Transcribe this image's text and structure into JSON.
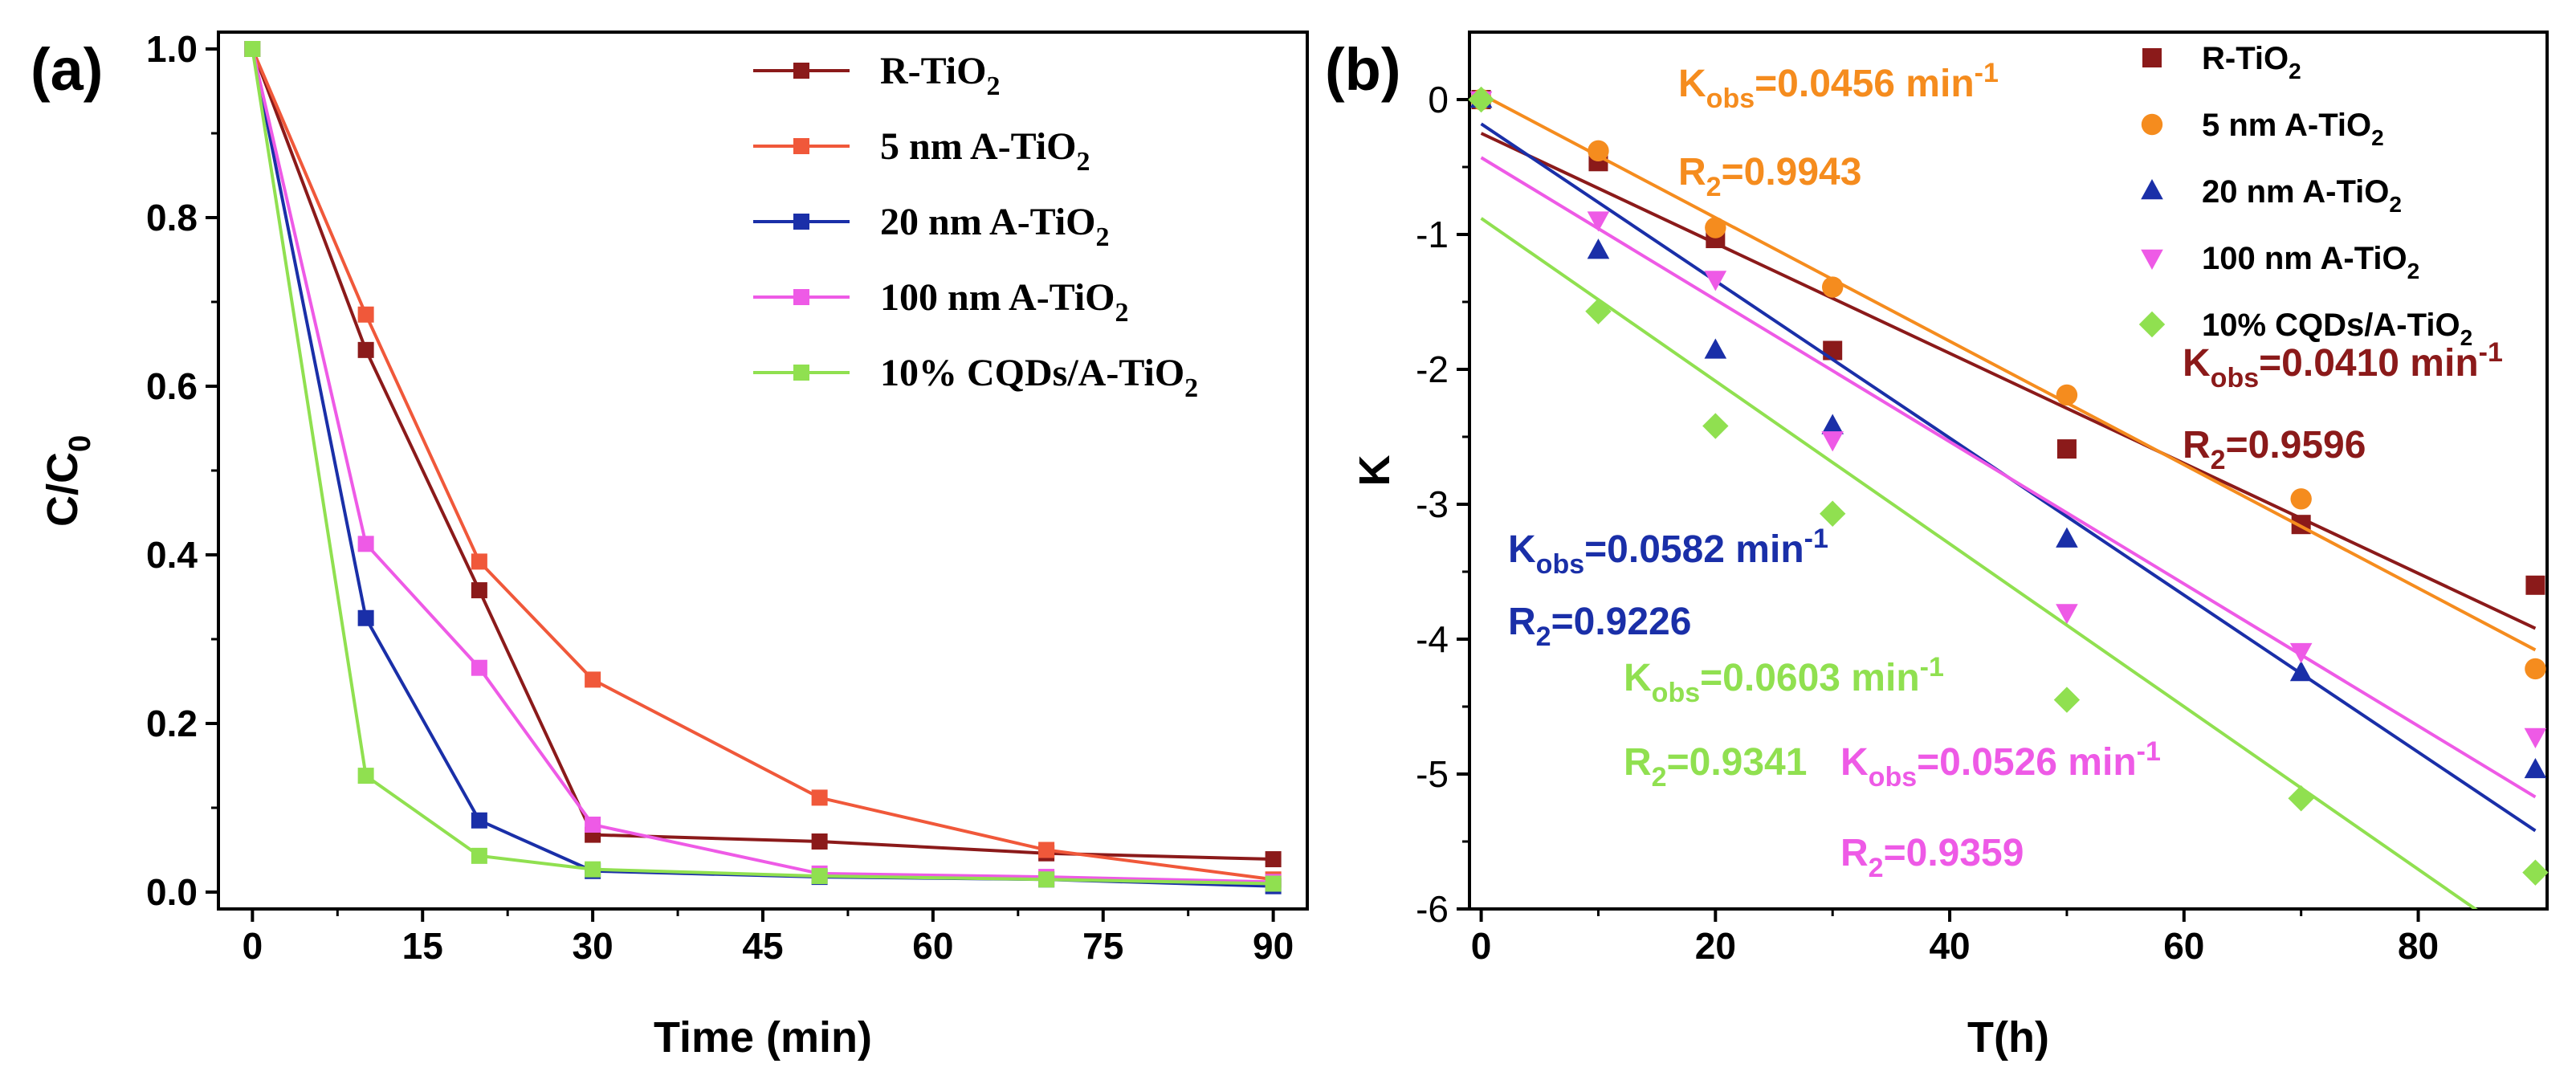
{
  "chart_data": [
    {
      "type": "line",
      "panel_label": "(a)",
      "xlabel": "Time (min)",
      "ylabel_main": "C/C",
      "ylabel_sub": "0",
      "xlim": [
        -3,
        93
      ],
      "ylim": [
        -0.02,
        1.02
      ],
      "xticks": [
        0,
        15,
        30,
        45,
        60,
        75,
        90
      ],
      "yticks": [
        0.0,
        0.2,
        0.4,
        0.6,
        0.8,
        1.0
      ],
      "x": [
        0,
        10,
        20,
        30,
        50,
        70,
        90
      ],
      "series": [
        {
          "name": "R-TiO2",
          "label_parts": [
            "R-TiO",
            "2",
            ""
          ],
          "color": "#8b1a1a",
          "values": [
            1.0,
            0.643,
            0.358,
            0.068,
            0.06,
            0.046,
            0.039
          ]
        },
        {
          "name": "5 nm A-TiO2",
          "label_parts": [
            "5 nm A-TiO",
            "2",
            ""
          ],
          "color": "#f0583a",
          "values": [
            1.0,
            0.685,
            0.392,
            0.252,
            0.112,
            0.05,
            0.015
          ]
        },
        {
          "name": "20 nm A-TiO2",
          "label_parts": [
            "20 nm A-TiO",
            "2",
            ""
          ],
          "color": "#1a2fa8",
          "values": [
            1.0,
            0.325,
            0.085,
            0.025,
            0.018,
            0.015,
            0.007
          ]
        },
        {
          "name": "100 nm A-TiO2",
          "label_parts": [
            "100 nm A-TiO",
            "2",
            ""
          ],
          "color": "#ee5ae6",
          "values": [
            1.0,
            0.413,
            0.266,
            0.08,
            0.022,
            0.018,
            0.012
          ]
        },
        {
          "name": "10% CQDs/A-TiO2",
          "label_parts": [
            "10% CQDs/A-TiO",
            "2",
            ""
          ],
          "color": "#90e050",
          "values": [
            1.0,
            0.138,
            0.043,
            0.027,
            0.019,
            0.015,
            0.01
          ]
        }
      ]
    },
    {
      "type": "scatter",
      "panel_label": "(b)",
      "xlabel": "T(h)",
      "ylabel": "K",
      "xlim": [
        -1,
        91
      ],
      "ylim": [
        -6,
        0.5
      ],
      "xticks": [
        0,
        20,
        40,
        60,
        80
      ],
      "yticks": [
        0,
        -1,
        -2,
        -3,
        -4,
        -5,
        -6
      ],
      "x": [
        0,
        10,
        20,
        30,
        50,
        70,
        90
      ],
      "series": [
        {
          "name": "R-TiO2",
          "label_parts": [
            "R-TiO",
            "2",
            ""
          ],
          "color": "#8b1a1a",
          "marker": "square",
          "values": [
            0,
            -0.46,
            -1.03,
            -1.86,
            -2.59,
            -3.15,
            -3.6
          ],
          "fit": [
            -0.25,
            -3.92
          ]
        },
        {
          "name": "5 nm A-TiO2",
          "label_parts": [
            "5 nm A-TiO",
            "2",
            ""
          ],
          "color": "#f58c1e",
          "marker": "circle",
          "values": [
            0,
            -0.38,
            -0.95,
            -1.39,
            -2.19,
            -2.96,
            -4.22
          ],
          "fit": [
            0.04,
            -4.08
          ]
        },
        {
          "name": "20 nm A-TiO2",
          "label_parts": [
            "20 nm A-TiO",
            "2",
            ""
          ],
          "color": "#1a2fa8",
          "marker": "triangle-up",
          "values": [
            0,
            -1.12,
            -1.86,
            -2.42,
            -3.26,
            -4.25,
            -4.97
          ],
          "fit": [
            -0.18,
            -5.42
          ]
        },
        {
          "name": "100 nm A-TiO2",
          "label_parts": [
            "100 nm A-TiO",
            "2",
            ""
          ],
          "color": "#ee5ae6",
          "marker": "triangle-down",
          "values": [
            0,
            -0.89,
            -1.33,
            -2.52,
            -3.8,
            -4.09,
            -4.72
          ],
          "fit": [
            -0.43,
            -5.17
          ]
        },
        {
          "name": "10% CQDs/A-TiO2",
          "label_parts": [
            "10% CQDs/A-TiO",
            "2",
            ""
          ],
          "color": "#90e050",
          "marker": "diamond",
          "values": [
            0,
            -1.57,
            -2.42,
            -3.07,
            -4.45,
            -5.18,
            -5.73
          ],
          "fit": [
            -0.88,
            -6.31
          ]
        }
      ],
      "annotations": [
        {
          "id": "k-5nm",
          "color": "#f58c1e",
          "lines": [
            [
              "K",
              "obs",
              "=0.0456 min",
              "-1"
            ],
            [
              "R",
              "2",
              "=0.9943",
              ""
            ]
          ]
        },
        {
          "id": "k-r",
          "color": "#8b1a1a",
          "lines": [
            [
              "K",
              "obs",
              "=0.0410 min",
              "-1"
            ],
            [
              "R",
              "2",
              "=0.9596",
              ""
            ]
          ]
        },
        {
          "id": "k-20nm",
          "color": "#1a2fa8",
          "lines": [
            [
              "K",
              "obs",
              "=0.0582 min",
              "-1"
            ],
            [
              "R",
              "2",
              "=0.9226",
              ""
            ]
          ]
        },
        {
          "id": "k-cqd",
          "color": "#90e050",
          "lines": [
            [
              "K",
              "obs",
              "=0.0603 min",
              "-1"
            ],
            [
              "R",
              "2",
              "=0.9341",
              ""
            ]
          ]
        },
        {
          "id": "k-100nm",
          "color": "#ee5ae6",
          "lines": [
            [
              "K",
              "obs",
              "=0.0526 min",
              "-1"
            ],
            [
              "R",
              "2",
              "=0.9359",
              ""
            ]
          ]
        }
      ]
    }
  ]
}
